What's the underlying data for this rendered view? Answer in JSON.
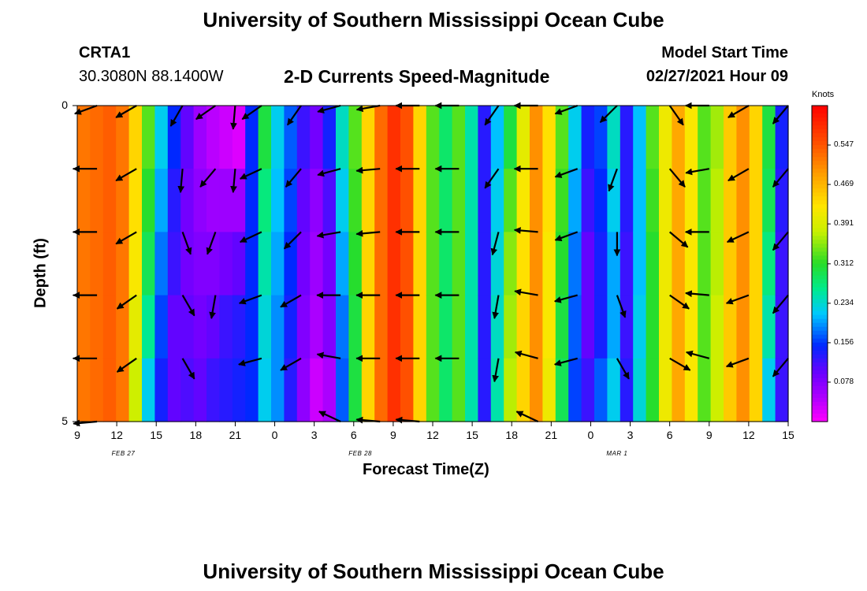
{
  "header": {
    "title": "University of Southern Mississippi Ocean Cube",
    "station": "CRTA1",
    "coords": "30.3080N 88.1400W",
    "chart_title": "2-D Currents Speed-Magnitude",
    "model_label": "Model Start Time",
    "model_time": "02/27/2021 Hour 09"
  },
  "footer": {
    "title": "University of Southern Mississippi Ocean Cube"
  },
  "chart_data": {
    "type": "heatmap",
    "title": "2-D Currents Speed-Magnitude",
    "xlabel": "Forecast Time(Z)",
    "ylabel": "Depth (ft)",
    "x_ticks": [
      "9",
      "12",
      "15",
      "18",
      "21",
      "0",
      "3",
      "6",
      "9",
      "12",
      "15",
      "18",
      "21",
      "0",
      "3",
      "6",
      "9",
      "12",
      "15"
    ],
    "x_range_hours": [
      0,
      54
    ],
    "date_labels": [
      {
        "text": "FEB 27",
        "hour": 9
      },
      {
        "text": "FEB 28",
        "hour": 27
      },
      {
        "text": "MAR 1",
        "hour": 46.5
      }
    ],
    "y_ticks": [
      "0",
      "5"
    ],
    "y_range_ft": [
      0,
      5
    ],
    "colorbar": {
      "unit": "Knots",
      "ticks": [
        "0.547",
        "0.469",
        "0.391",
        "0.312",
        "0.234",
        "0.156",
        "0.078"
      ],
      "tick_values": [
        0.547,
        0.469,
        0.391,
        0.312,
        0.234,
        0.156,
        0.078
      ],
      "range": [
        0.0,
        0.625
      ]
    },
    "depths_ft": [
      0.5,
      1.5,
      2.5,
      3.5,
      4.5
    ],
    "speed_columns": [
      [
        0.52,
        0.52,
        0.52,
        0.52,
        0.52
      ],
      [
        0.53,
        0.53,
        0.53,
        0.53,
        0.53
      ],
      [
        0.54,
        0.54,
        0.54,
        0.54,
        0.54
      ],
      [
        0.52,
        0.52,
        0.52,
        0.52,
        0.52
      ],
      [
        0.44,
        0.43,
        0.42,
        0.4,
        0.38
      ],
      [
        0.33,
        0.31,
        0.29,
        0.26,
        0.22
      ],
      [
        0.22,
        0.2,
        0.18,
        0.16,
        0.14
      ],
      [
        0.15,
        0.13,
        0.12,
        0.1,
        0.1
      ],
      [
        0.1,
        0.09,
        0.09,
        0.1,
        0.11
      ],
      [
        0.06,
        0.07,
        0.08,
        0.09,
        0.1
      ],
      [
        0.04,
        0.06,
        0.08,
        0.1,
        0.12
      ],
      [
        0.03,
        0.06,
        0.09,
        0.12,
        0.13
      ],
      [
        0.02,
        0.06,
        0.1,
        0.13,
        0.14
      ],
      [
        0.15,
        0.15,
        0.15,
        0.15,
        0.15
      ],
      [
        0.3,
        0.27,
        0.25,
        0.23,
        0.22
      ],
      [
        0.22,
        0.21,
        0.2,
        0.19,
        0.19
      ],
      [
        0.17,
        0.16,
        0.15,
        0.14,
        0.13
      ],
      [
        0.12,
        0.1,
        0.09,
        0.08,
        0.07
      ],
      [
        0.09,
        0.07,
        0.06,
        0.05,
        0.03
      ],
      [
        0.14,
        0.11,
        0.09,
        0.08,
        0.05
      ],
      [
        0.24,
        0.22,
        0.2,
        0.18,
        0.17
      ],
      [
        0.33,
        0.32,
        0.31,
        0.3,
        0.3
      ],
      [
        0.44,
        0.44,
        0.44,
        0.44,
        0.44
      ],
      [
        0.53,
        0.53,
        0.53,
        0.53,
        0.53
      ],
      [
        0.58,
        0.58,
        0.58,
        0.58,
        0.58
      ],
      [
        0.55,
        0.55,
        0.55,
        0.55,
        0.55
      ],
      [
        0.44,
        0.44,
        0.44,
        0.44,
        0.44
      ],
      [
        0.33,
        0.33,
        0.33,
        0.33,
        0.33
      ],
      [
        0.28,
        0.28,
        0.28,
        0.28,
        0.28
      ],
      [
        0.33,
        0.33,
        0.33,
        0.33,
        0.33
      ],
      [
        0.25,
        0.25,
        0.25,
        0.25,
        0.25
      ],
      [
        0.13,
        0.13,
        0.13,
        0.13,
        0.13
      ],
      [
        0.21,
        0.22,
        0.23,
        0.24,
        0.25
      ],
      [
        0.3,
        0.33,
        0.35,
        0.36,
        0.37
      ],
      [
        0.4,
        0.42,
        0.43,
        0.44,
        0.44
      ],
      [
        0.5,
        0.5,
        0.5,
        0.5,
        0.5
      ],
      [
        0.43,
        0.43,
        0.42,
        0.42,
        0.41
      ],
      [
        0.33,
        0.32,
        0.31,
        0.3,
        0.29
      ],
      [
        0.22,
        0.2,
        0.18,
        0.17,
        0.16
      ],
      [
        0.14,
        0.12,
        0.1,
        0.1,
        0.12
      ],
      [
        0.16,
        0.15,
        0.14,
        0.14,
        0.17
      ],
      [
        0.24,
        0.22,
        0.2,
        0.2,
        0.22
      ],
      [
        0.13,
        0.13,
        0.12,
        0.12,
        0.13
      ],
      [
        0.21,
        0.21,
        0.21,
        0.22,
        0.23
      ],
      [
        0.33,
        0.32,
        0.31,
        0.31,
        0.31
      ],
      [
        0.41,
        0.41,
        0.41,
        0.41,
        0.41
      ],
      [
        0.48,
        0.48,
        0.48,
        0.48,
        0.48
      ],
      [
        0.42,
        0.42,
        0.42,
        0.42,
        0.42
      ],
      [
        0.33,
        0.33,
        0.33,
        0.33,
        0.33
      ],
      [
        0.36,
        0.37,
        0.37,
        0.38,
        0.38
      ],
      [
        0.45,
        0.45,
        0.45,
        0.45,
        0.45
      ],
      [
        0.5,
        0.5,
        0.5,
        0.5,
        0.5
      ],
      [
        0.44,
        0.44,
        0.44,
        0.44,
        0.44
      ],
      [
        0.3,
        0.29,
        0.27,
        0.25,
        0.22
      ],
      [
        0.14,
        0.13,
        0.12,
        0.12,
        0.12
      ]
    ],
    "vectors": [
      {
        "x": 10.5,
        "d": [
          [
            250,
            30
          ],
          [
            270,
            30
          ],
          [
            270,
            30
          ],
          [
            270,
            30
          ],
          [
            270,
            30
          ],
          [
            265,
            30
          ]
        ]
      },
      {
        "x": 13.5,
        "d": [
          [
            240,
            30
          ],
          [
            240,
            30
          ],
          [
            240,
            30
          ],
          [
            235,
            30
          ],
          [
            235,
            30
          ]
        ]
      },
      {
        "x": 17,
        "d": [
          [
            210,
            30
          ],
          [
            185,
            30
          ],
          [
            160,
            30
          ],
          [
            150,
            30
          ],
          [
            150,
            30
          ]
        ]
      },
      {
        "x": 19.5,
        "d": [
          [
            235,
            30
          ],
          [
            220,
            30
          ],
          [
            200,
            30
          ],
          [
            190,
            30
          ]
        ]
      },
      {
        "x": 21,
        "d": [
          [
            185,
            30
          ],
          [
            185,
            30
          ]
        ]
      },
      {
        "x": 23,
        "d": [
          [
            235,
            30
          ],
          [
            245,
            30
          ],
          [
            245,
            30
          ],
          [
            250,
            30
          ],
          [
            255,
            30
          ]
        ]
      },
      {
        "x": 26,
        "d": [
          [
            215,
            30
          ],
          [
            220,
            30
          ],
          [
            225,
            30
          ],
          [
            240,
            30
          ],
          [
            240,
            30
          ]
        ]
      },
      {
        "x": 29,
        "d": [
          [
            255,
            30
          ],
          [
            255,
            30
          ],
          [
            260,
            30
          ],
          [
            270,
            30
          ],
          [
            280,
            30
          ],
          [
            295,
            30
          ]
        ]
      },
      {
        "x": 32,
        "d": [
          [
            260,
            30
          ],
          [
            265,
            30
          ],
          [
            265,
            30
          ],
          [
            270,
            30
          ],
          [
            270,
            30
          ],
          [
            275,
            30
          ]
        ]
      },
      {
        "x": 35,
        "d": [
          [
            270,
            30
          ],
          [
            270,
            30
          ],
          [
            270,
            30
          ],
          [
            270,
            30
          ],
          [
            270,
            30
          ],
          [
            275,
            30
          ]
        ]
      },
      {
        "x": 38,
        "d": [
          [
            270,
            30
          ],
          [
            270,
            30
          ],
          [
            270,
            30
          ],
          [
            270,
            30
          ],
          [
            270,
            30
          ]
        ]
      },
      {
        "x": 41,
        "d": [
          [
            215,
            30
          ],
          [
            215,
            30
          ],
          [
            195,
            30
          ],
          [
            190,
            30
          ],
          [
            190,
            30
          ]
        ]
      },
      {
        "x": 44,
        "d": [
          [
            270,
            30
          ],
          [
            270,
            30
          ],
          [
            275,
            30
          ],
          [
            280,
            30
          ],
          [
            285,
            30
          ],
          [
            295,
            30
          ]
        ]
      },
      {
        "x": 47,
        "d": [
          [
            250,
            30
          ],
          [
            250,
            30
          ],
          [
            250,
            30
          ],
          [
            255,
            30
          ],
          [
            255,
            30
          ]
        ]
      },
      {
        "x": 50,
        "d": [
          [
            225,
            30
          ],
          [
            200,
            30
          ],
          [
            180,
            30
          ],
          [
            160,
            30
          ],
          [
            150,
            30
          ]
        ]
      },
      {
        "x": 54,
        "d": [
          [
            145,
            30
          ],
          [
            140,
            30
          ],
          [
            130,
            30
          ],
          [
            125,
            30
          ],
          [
            120,
            30
          ]
        ]
      },
      {
        "x": 57,
        "d": [
          [
            270,
            30
          ],
          [
            260,
            30
          ],
          [
            270,
            30
          ],
          [
            275,
            30
          ],
          [
            285,
            30
          ]
        ]
      },
      {
        "x": 60,
        "d": [
          [
            240,
            30
          ],
          [
            240,
            30
          ],
          [
            245,
            30
          ],
          [
            250,
            30
          ],
          [
            250,
            30
          ]
        ]
      },
      {
        "x": 63,
        "d": [
          [
            220,
            30
          ],
          [
            220,
            30
          ],
          [
            220,
            30
          ],
          [
            220,
            30
          ],
          [
            220,
            30
          ]
        ]
      }
    ]
  }
}
